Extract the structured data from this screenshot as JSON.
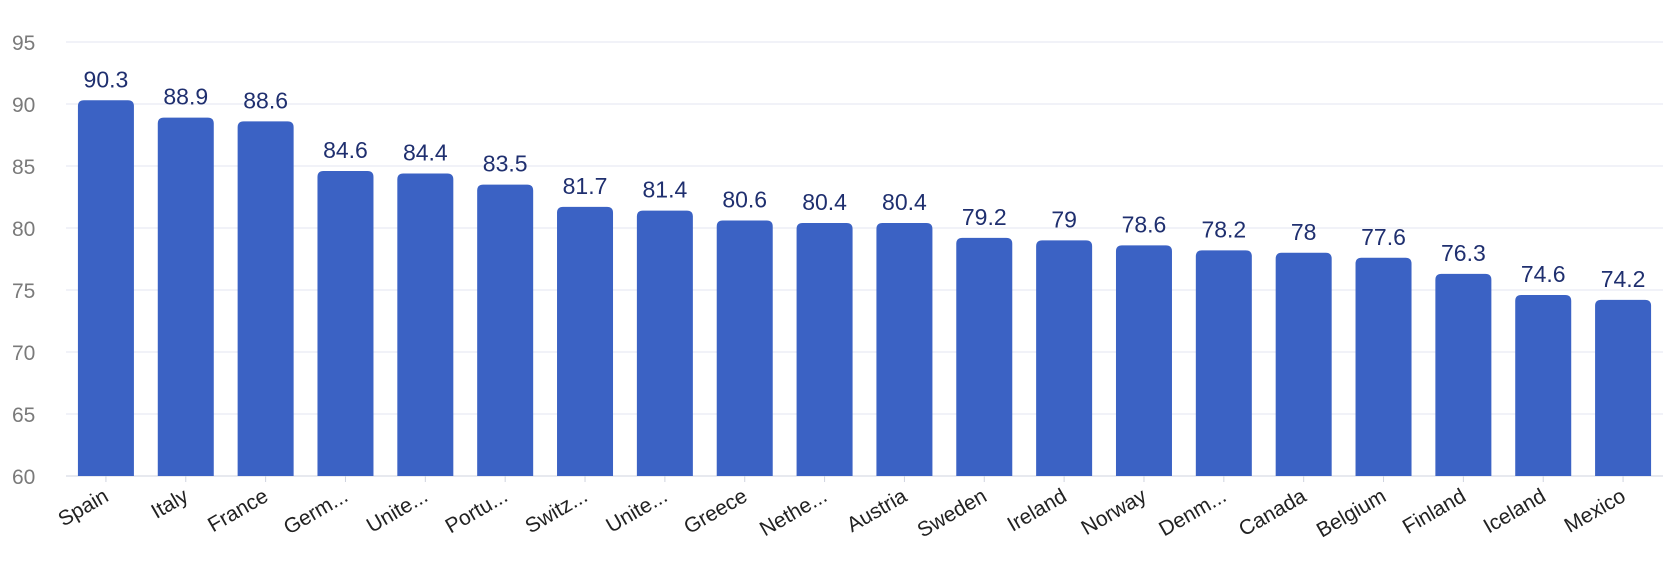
{
  "chart_data": {
    "type": "bar",
    "title": "",
    "xlabel": "",
    "ylabel": "",
    "ylim": [
      60,
      95
    ],
    "yticks": [
      60,
      65,
      70,
      75,
      80,
      85,
      90,
      95
    ],
    "grid": true,
    "categories": [
      "Spain",
      "Italy",
      "France",
      "Germ...",
      "Unite...",
      "Portu...",
      "Switz...",
      "Unite...",
      "Greece",
      "Nethe...",
      "Austria",
      "Sweden",
      "Ireland",
      "Norway",
      "Denm...",
      "Canada",
      "Belgium",
      "Finland",
      "Iceland",
      "Mexico"
    ],
    "values": [
      90.3,
      88.9,
      88.6,
      84.6,
      84.4,
      83.5,
      81.7,
      81.4,
      80.6,
      80.4,
      80.4,
      79.2,
      79,
      78.6,
      78.2,
      78,
      77.6,
      76.3,
      74.6,
      74.2
    ],
    "colors": {
      "bar": "#3b62c4",
      "data_label": "#1f2f6f",
      "grid": "#e3e6f0",
      "tick_label": "#7a7a7a",
      "category_label": "#222222"
    }
  }
}
